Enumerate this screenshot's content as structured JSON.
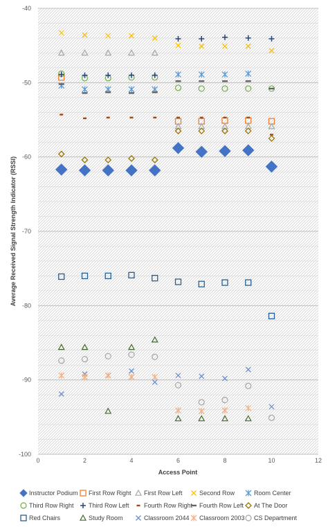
{
  "chart_data": {
    "type": "scatter",
    "title": "",
    "xlabel": "Access Point",
    "ylabel": "Average Received Signal Strength Indicator (RSSI)",
    "xlim": [
      0,
      12
    ],
    "ylim": [
      -100,
      -40
    ],
    "x_ticks": [
      "0",
      "2",
      "4",
      "6",
      "8",
      "10",
      "12"
    ],
    "y_ticks": [
      "-40",
      "-50",
      "-60",
      "-70",
      "-80",
      "-90",
      "-100"
    ],
    "grid": true,
    "legend_position": "bottom",
    "series": [
      {
        "name": "Instructor Podium",
        "marker": "diamond-filled",
        "color": "#4472C4",
        "size": 8,
        "x": [
          1,
          2,
          3,
          4,
          5,
          6,
          7,
          8,
          9,
          10
        ],
        "y": [
          -61.7,
          -61.8,
          -61.8,
          -61.8,
          -61.8,
          -58.8,
          -59.3,
          -59.2,
          -59.1,
          -61.3
        ]
      },
      {
        "name": "First Row Right",
        "marker": "square-open",
        "color": "#ED7D31",
        "size": 4,
        "x": [
          1,
          6,
          7,
          8,
          9,
          10
        ],
        "y": [
          -49.3,
          -55.2,
          -55.2,
          -55.1,
          -55.1,
          -55.2
        ]
      },
      {
        "name": "First Row Left",
        "marker": "triangle-open",
        "color": "#A5A5A5",
        "size": 4,
        "x": [
          1,
          2,
          3,
          4,
          5,
          6,
          7,
          8,
          9,
          10
        ],
        "y": [
          -46.0,
          -46.0,
          -46.0,
          -46.0,
          -46.0,
          -55.9,
          -55.9,
          -55.9,
          -55.9,
          -55.9
        ]
      },
      {
        "name": "Second Row",
        "marker": "x",
        "color": "#FFC000",
        "size": 3.5,
        "x": [
          1,
          2,
          3,
          4,
          5,
          6,
          7,
          8,
          9,
          10
        ],
        "y": [
          -43.3,
          -43.6,
          -43.7,
          -43.7,
          -44.0,
          -45.0,
          -45.1,
          -45.1,
          -45.1,
          -45.7
        ]
      },
      {
        "name": "Room Center",
        "marker": "star",
        "color": "#5B9BD5",
        "size": 4,
        "x": [
          1,
          2,
          3,
          4,
          5,
          6,
          7,
          8,
          9
        ],
        "y": [
          -50.4,
          -50.9,
          -50.9,
          -50.9,
          -50.9,
          -48.9,
          -48.9,
          -48.9,
          -48.8
        ]
      },
      {
        "name": "Third Row Right",
        "marker": "circle-open",
        "color": "#70AD47",
        "size": 4,
        "x": [
          1,
          2,
          3,
          4,
          5,
          6,
          7,
          8,
          9,
          10
        ],
        "y": [
          -48.8,
          -49.4,
          -49.4,
          -49.3,
          -49.3,
          -50.7,
          -50.8,
          -50.8,
          -50.8,
          -50.8
        ]
      },
      {
        "name": "Third Row Left",
        "marker": "plus",
        "color": "#264478",
        "size": 4,
        "x": [
          1,
          2,
          3,
          4,
          5,
          6,
          7,
          8,
          9,
          10
        ],
        "y": [
          -48.9,
          -49.0,
          -49.0,
          -49.0,
          -49.0,
          -44.1,
          -44.1,
          -43.9,
          -44.0,
          -44.1
        ]
      },
      {
        "name": "Fourth Row Right",
        "marker": "dash",
        "color": "#9E480E",
        "size": 2.5,
        "x": [
          1,
          2,
          3,
          4,
          5,
          6,
          7,
          8,
          9,
          10
        ],
        "y": [
          -54.3,
          -54.8,
          -54.7,
          -54.7,
          -54.7,
          -54.7,
          -54.7,
          -54.7,
          -54.7,
          -57.0
        ]
      },
      {
        "name": "Fourth Row Left",
        "marker": "dash",
        "color": "#636363",
        "size": 4,
        "x": [
          1,
          2,
          3,
          4,
          5,
          6,
          7,
          8,
          9,
          10
        ],
        "y": [
          -50.2,
          -51.4,
          -51.3,
          -51.4,
          -51.3,
          -49.8,
          -49.8,
          -49.8,
          -49.8,
          -50.8
        ]
      },
      {
        "name": "At The Door",
        "marker": "diamond-open",
        "color": "#997300",
        "size": 4,
        "x": [
          1,
          2,
          3,
          4,
          5,
          6,
          7,
          8,
          9,
          10
        ],
        "y": [
          -59.6,
          -60.4,
          -60.4,
          -60.2,
          -60.4,
          -56.5,
          -56.5,
          -56.5,
          -56.5,
          -57.5
        ]
      },
      {
        "name": "Red Chairs",
        "marker": "square-open",
        "color": "#255E91",
        "size": 4,
        "x": [
          1,
          2,
          3,
          4,
          5,
          6,
          7,
          8,
          9,
          10
        ],
        "y": [
          -76.1,
          -76.0,
          -76.0,
          -75.9,
          -76.3,
          -76.8,
          -77.1,
          -76.9,
          -76.9,
          -81.4
        ]
      },
      {
        "name": "Study Room",
        "marker": "triangle-open",
        "color": "#43682B",
        "size": 4,
        "x": [
          1,
          2,
          3,
          4,
          5,
          6,
          7,
          8,
          9
        ],
        "y": [
          -85.6,
          -85.6,
          -94.2,
          -85.6,
          -84.6,
          -95.2,
          -95.2,
          -95.2,
          -95.2
        ]
      },
      {
        "name": "Classroom 2044",
        "marker": "x",
        "color": "#698ED0",
        "size": 3.5,
        "x": [
          1,
          2,
          3,
          4,
          5,
          6,
          7,
          8,
          9,
          10
        ],
        "y": [
          -91.9,
          -89.2,
          -89.4,
          -88.8,
          -90.3,
          -89.4,
          -89.5,
          -89.8,
          -88.6,
          -93.6
        ]
      },
      {
        "name": "Classroom 2003",
        "marker": "star",
        "color": "#F4B183",
        "size": 4,
        "x": [
          1,
          2,
          3,
          4,
          5,
          6,
          7,
          8,
          9
        ],
        "y": [
          -89.4,
          -89.6,
          -89.4,
          -89.6,
          -89.6,
          -94.1,
          -94.2,
          -94.1,
          -93.8
        ]
      },
      {
        "name": "CS Department",
        "marker": "circle-open",
        "color": "#A5A5A5",
        "size": 4,
        "x": [
          1,
          2,
          3,
          4,
          5,
          6,
          7,
          8,
          9,
          10
        ],
        "y": [
          -87.4,
          -87.2,
          -86.8,
          -86.6,
          -86.9,
          -90.7,
          -93.0,
          -92.7,
          -90.8,
          -95.1
        ]
      }
    ]
  }
}
